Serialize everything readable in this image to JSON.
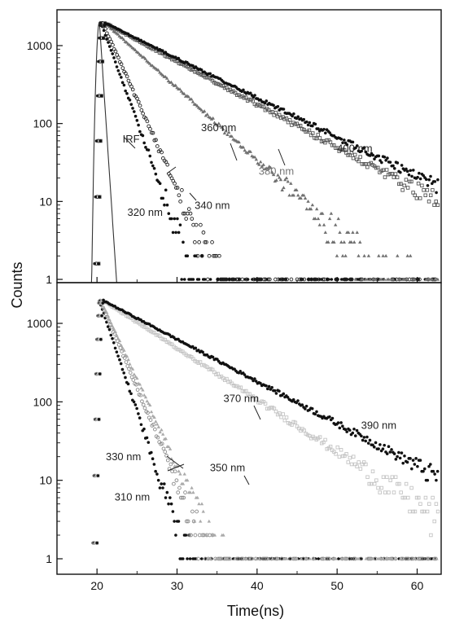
{
  "figure": {
    "ylabel": "Counts",
    "xlabel": "Time(ns)"
  },
  "chart_data": [
    {
      "type": "scatter",
      "panel": "top",
      "xlim": [
        15,
        63
      ],
      "ylim": [
        0.85,
        2600
      ],
      "yscale": "log",
      "x_ticks": [
        20,
        30,
        40,
        50,
        60
      ],
      "y_ticks": [
        1,
        10,
        100,
        1000
      ],
      "y_tick_labels": [
        "1",
        "10",
        "100",
        "1000"
      ],
      "grid": false,
      "series": [
        {
          "name": "IRF",
          "marker": "line",
          "color": "#333333",
          "peak_x": 20.3,
          "peak_y": 2000
        },
        {
          "name": "320 nm",
          "marker": "dot",
          "color": "#111111",
          "x0": 20.5,
          "y0": 1950,
          "tau": 1.55,
          "floor": 1
        },
        {
          "name": "340 nm",
          "marker": "circle",
          "color": "#222222",
          "x0": 20.7,
          "y0": 1950,
          "tau": 1.9,
          "floor": 1
        },
        {
          "name": "360 nm",
          "marker": "triangle",
          "color": "#707070",
          "x0": 21.0,
          "y0": 1950,
          "tau": 4.7,
          "floor": 1
        },
        {
          "name": "380 nm",
          "marker": "square",
          "color": "#555555",
          "x0": 21.0,
          "y0": 1950,
          "tau": 7.9,
          "floor": 1
        },
        {
          "name": "400 nm",
          "marker": "dot",
          "color": "#111111",
          "x0": 21.0,
          "y0": 1950,
          "tau": 8.6,
          "floor": 1
        }
      ],
      "annotations": [
        {
          "text": "IRF",
          "color": "#222222",
          "x": 23.2,
          "y": 57
        },
        {
          "text": "320 nm",
          "color": "#222222",
          "x": 23.8,
          "y": 6.5
        },
        {
          "text": "340 nm",
          "color": "#222222",
          "x": 32.2,
          "y": 8.0
        },
        {
          "text": "360 nm",
          "color": "#222222",
          "x": 33.0,
          "y": 80
        },
        {
          "text": "380 nm",
          "color": "#777777",
          "x": 40.2,
          "y": 22
        },
        {
          "text": "400 nm",
          "color": "#222222",
          "x": 50.0,
          "y": 43
        }
      ]
    },
    {
      "type": "scatter",
      "panel": "bottom",
      "xlim": [
        15,
        63
      ],
      "ylim": [
        0.85,
        2600
      ],
      "yscale": "log",
      "x_ticks": [
        20,
        30,
        40,
        50,
        60
      ],
      "x_tick_labels": [
        "20",
        "30",
        "40",
        "50",
        "60"
      ],
      "y_ticks": [
        1,
        10,
        100,
        1000
      ],
      "y_tick_labels": [
        "1",
        "10",
        "100",
        "1000"
      ],
      "grid": false,
      "series": [
        {
          "name": "310 nm",
          "marker": "dot",
          "color": "#111111",
          "x0": 20.3,
          "y0": 1950,
          "tau": 1.45,
          "floor": 1
        },
        {
          "name": "330 nm",
          "marker": "circle",
          "color": "#8a8a8a",
          "x0": 20.4,
          "y0": 1950,
          "tau": 1.8,
          "floor": 1
        },
        {
          "name": "350 nm",
          "marker": "triangle",
          "color": "#aaaaaa",
          "x0": 20.5,
          "y0": 1950,
          "tau": 1.95,
          "floor": 1
        },
        {
          "name": "370 nm",
          "marker": "square",
          "color": "#c4c4c4",
          "x0": 20.8,
          "y0": 1950,
          "tau": 6.6,
          "floor": 1
        },
        {
          "name": "390 nm",
          "marker": "dot",
          "color": "#111111",
          "x0": 20.8,
          "y0": 1950,
          "tau": 8.1,
          "floor": 1
        }
      ],
      "annotations": [
        {
          "text": "330 nm",
          "color": "#222222",
          "x": 21.1,
          "y": 18
        },
        {
          "text": "310 nm",
          "color": "#222222",
          "x": 22.2,
          "y": 5.5
        },
        {
          "text": "350 nm",
          "color": "#222222",
          "x": 34.1,
          "y": 13
        },
        {
          "text": "370 nm",
          "color": "#222222",
          "x": 35.8,
          "y": 100
        },
        {
          "text": "390 nm",
          "color": "#222222",
          "x": 53.0,
          "y": 45
        }
      ]
    }
  ]
}
